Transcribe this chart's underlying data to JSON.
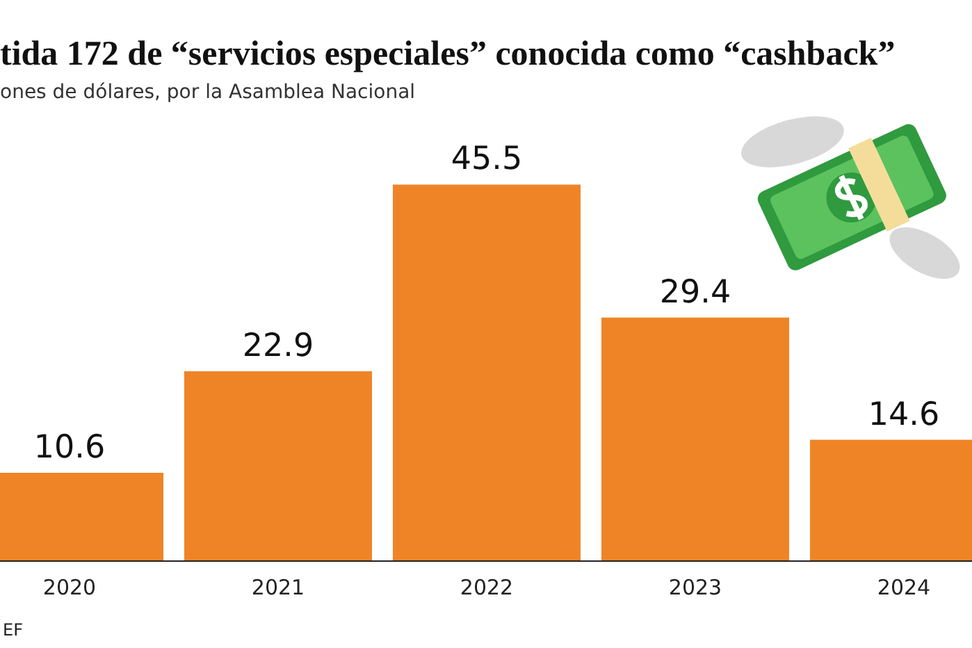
{
  "chart_data": {
    "type": "bar",
    "title": "tida 172 de “servicios especiales” conocida como “cashback”",
    "subtitle": "ones de dólares, por la Asamblea Nacional",
    "categories": [
      "2020",
      "2021",
      "2022",
      "2023",
      "2024"
    ],
    "values": [
      10.6,
      22.9,
      45.5,
      29.4,
      14.6
    ],
    "color": "#ef8427",
    "data_labels": true,
    "grid": false,
    "annotations": [
      "EF"
    ]
  }
}
